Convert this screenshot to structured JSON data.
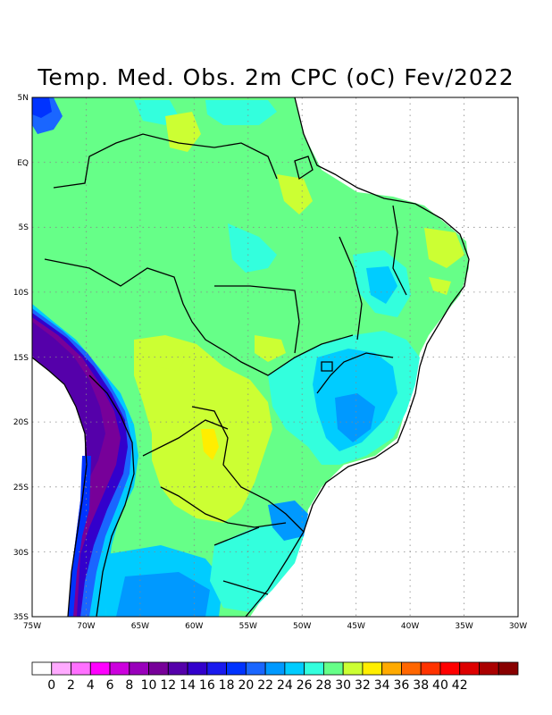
{
  "title": "Temp. Med. Obs. 2m CPC (oC) Fev/2022",
  "map": {
    "lon_labels": [
      "75W",
      "70W",
      "65W",
      "60W",
      "55W",
      "50W",
      "45W",
      "40W",
      "35W",
      "30W"
    ],
    "lat_labels": [
      "5N",
      "EQ",
      "5S",
      "10S",
      "15S",
      "20S",
      "25S",
      "30S",
      "35S"
    ],
    "lon_range": [
      -75,
      -30
    ],
    "lat_range": [
      -35,
      5
    ],
    "grid": "dotted"
  },
  "colorbar": {
    "labels": [
      "0",
      "2",
      "4",
      "6",
      "8",
      "10",
      "12",
      "14",
      "16",
      "18",
      "20",
      "22",
      "24",
      "26",
      "28",
      "30",
      "32",
      "34",
      "36",
      "38",
      "40",
      "42"
    ],
    "colors": [
      "#ffffff",
      "#ffaaff",
      "#ff70ff",
      "#ff00ff",
      "#cc00dd",
      "#9900bb",
      "#770099",
      "#5500aa",
      "#3300cc",
      "#1a1aee",
      "#0033ff",
      "#1a66ff",
      "#0099ff",
      "#00ccff",
      "#33ffdd",
      "#66ff88",
      "#ccff33",
      "#ffee00",
      "#ffaa00",
      "#ff6600",
      "#ff3300",
      "#ff0000",
      "#dd0000",
      "#aa0000",
      "#880000"
    ]
  }
}
